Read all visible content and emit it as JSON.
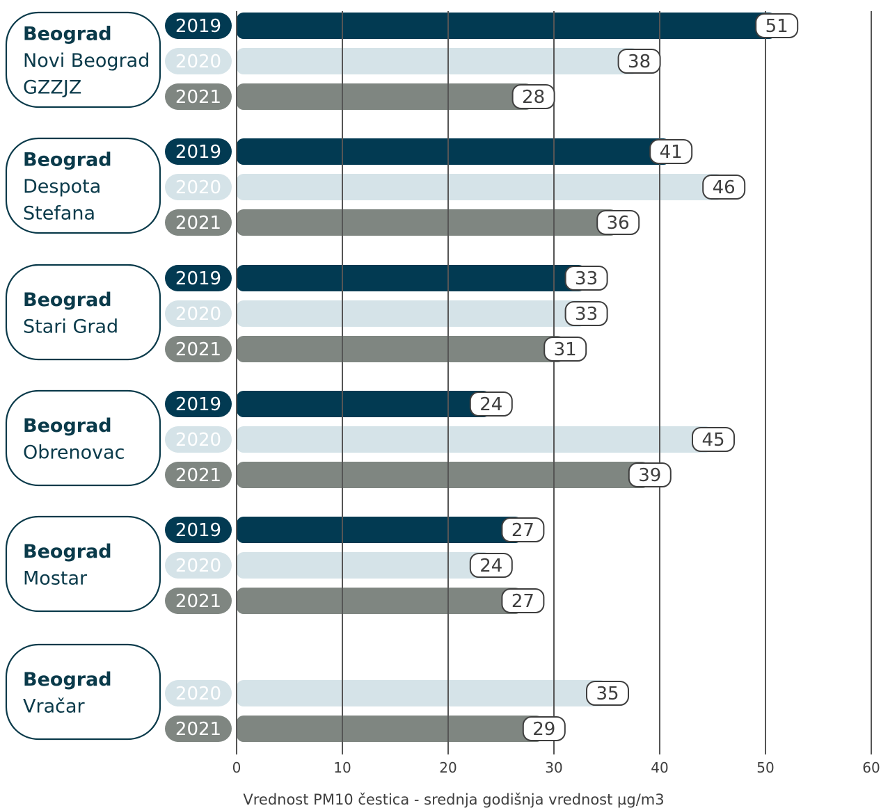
{
  "chart_data": {
    "type": "bar",
    "orientation": "horizontal",
    "xlabel": "Vrednost PM10 čestica - srednja godišnja vrednost µg/m3",
    "xlim": [
      0,
      60
    ],
    "xticks": [
      "0",
      "10",
      "20",
      "30",
      "40",
      "50",
      "60"
    ],
    "grid": true,
    "colors": {
      "2019": "#023a52",
      "2020": "#d5e3e8",
      "2021": "#7f8681",
      "year_text_2019": "#ffffff",
      "year_text_2020": "#ffffff",
      "year_text_2021": "#ffffff",
      "label_border": "#3e3e3e",
      "station_border": "#0a3a4a",
      "gridline": "#555555"
    },
    "groups": [
      {
        "station_name": "Beograd",
        "station_lines": [
          "Novi Beograd",
          "GZZJZ"
        ],
        "bars": [
          {
            "year": "2019",
            "value": 51
          },
          {
            "year": "2020",
            "value": 38
          },
          {
            "year": "2021",
            "value": 28
          }
        ]
      },
      {
        "station_name": "Beograd",
        "station_lines": [
          "Despota",
          "Stefana"
        ],
        "bars": [
          {
            "year": "2019",
            "value": 41
          },
          {
            "year": "2020",
            "value": 46
          },
          {
            "year": "2021",
            "value": 36
          }
        ]
      },
      {
        "station_name": "Beograd",
        "station_lines": [
          "Stari Grad"
        ],
        "bars": [
          {
            "year": "2019",
            "value": 33
          },
          {
            "year": "2020",
            "value": 33
          },
          {
            "year": "2021",
            "value": 31
          }
        ]
      },
      {
        "station_name": "Beograd",
        "station_lines": [
          "Obrenovac"
        ],
        "bars": [
          {
            "year": "2019",
            "value": 24
          },
          {
            "year": "2020",
            "value": 45
          },
          {
            "year": "2021",
            "value": 39
          }
        ]
      },
      {
        "station_name": "Beograd",
        "station_lines": [
          "Mostar"
        ],
        "bars": [
          {
            "year": "2019",
            "value": 27
          },
          {
            "year": "2020",
            "value": 24
          },
          {
            "year": "2021",
            "value": 27
          }
        ]
      },
      {
        "station_name": "Beograd",
        "station_lines": [
          "Vračar"
        ],
        "bars": [
          {
            "year": "2020",
            "value": 35
          },
          {
            "year": "2021",
            "value": 29
          }
        ]
      }
    ]
  }
}
